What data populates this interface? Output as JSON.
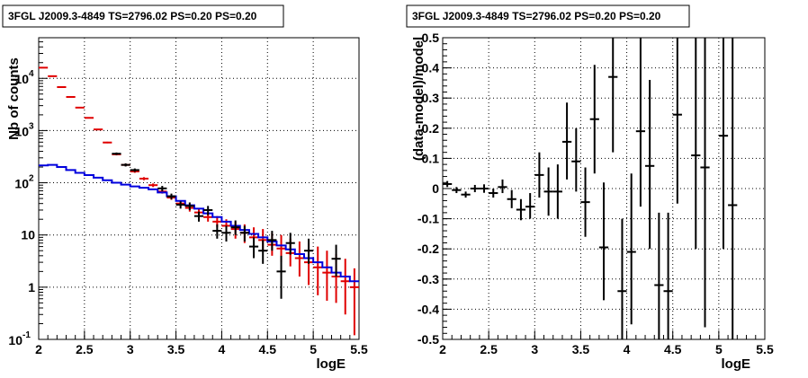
{
  "chart_data": [
    {
      "type": "scatter",
      "title": "3FGL J2009.3-4849 TS=2796.02 PS=0.20 PS=0.20",
      "xlabel": "logE",
      "ylabel": "Nb of counts",
      "xlim": [
        2,
        5.5
      ],
      "ylim": [
        0.1,
        60000
      ],
      "yscale": "log",
      "grid": true,
      "xticks": [
        "2",
        "2.5",
        "3",
        "3.5",
        "4",
        "4.5",
        "5",
        "5.5"
      ],
      "yticks": [
        {
          "value": 0.1,
          "base": "10",
          "exp": "-1"
        },
        {
          "value": 1,
          "label": "1"
        },
        {
          "value": 10,
          "label": "10"
        },
        {
          "value": 100,
          "base": "10",
          "exp": "2"
        },
        {
          "value": 1000,
          "base": "10",
          "exp": "3"
        },
        {
          "value": 10000,
          "base": "10",
          "exp": "4"
        }
      ],
      "series": [
        {
          "style": "red-errorbar",
          "color": "#e00000",
          "halfwidth": 0.05,
          "points": [
            {
              "x": 2.05,
              "y": 16000,
              "lo": 15800,
              "hi": 16200
            },
            {
              "x": 2.15,
              "y": 11000,
              "lo": 10850,
              "hi": 11150
            },
            {
              "x": 2.25,
              "y": 6800,
              "lo": 6700,
              "hi": 6900
            },
            {
              "x": 2.35,
              "y": 4400,
              "lo": 4330,
              "hi": 4470
            },
            {
              "x": 2.45,
              "y": 2750,
              "lo": 2700,
              "hi": 2800
            },
            {
              "x": 2.55,
              "y": 1750,
              "lo": 1710,
              "hi": 1790
            },
            {
              "x": 2.65,
              "y": 1050,
              "lo": 1020,
              "hi": 1080
            },
            {
              "x": 2.75,
              "y": 590,
              "lo": 570,
              "hi": 610
            },
            {
              "x": 2.85,
              "y": 350,
              "lo": 335,
              "hi": 365
            },
            {
              "x": 2.95,
              "y": 220,
              "lo": 208,
              "hi": 232
            },
            {
              "x": 3.05,
              "y": 165,
              "lo": 155,
              "hi": 175
            },
            {
              "x": 3.15,
              "y": 120,
              "lo": 112,
              "hi": 128
            },
            {
              "x": 3.25,
              "y": 90,
              "lo": 83,
              "hi": 97
            },
            {
              "x": 3.35,
              "y": 68,
              "lo": 62,
              "hi": 74
            },
            {
              "x": 3.45,
              "y": 52,
              "lo": 47,
              "hi": 57
            },
            {
              "x": 3.55,
              "y": 40,
              "lo": 35,
              "hi": 45
            },
            {
              "x": 3.65,
              "y": 33,
              "lo": 28,
              "hi": 38
            },
            {
              "x": 3.75,
              "y": 27,
              "lo": 22,
              "hi": 32
            },
            {
              "x": 3.85,
              "y": 22,
              "lo": 18,
              "hi": 27
            },
            {
              "x": 3.95,
              "y": 18,
              "lo": 14,
              "hi": 23
            },
            {
              "x": 4.05,
              "y": 15,
              "lo": 10,
              "hi": 20
            },
            {
              "x": 4.15,
              "y": 13,
              "lo": 8.5,
              "hi": 18
            },
            {
              "x": 4.25,
              "y": 11,
              "lo": 7,
              "hi": 16
            },
            {
              "x": 4.35,
              "y": 9,
              "lo": 6,
              "hi": 14
            },
            {
              "x": 4.45,
              "y": 8,
              "lo": 5,
              "hi": 13
            },
            {
              "x": 4.55,
              "y": 6.5,
              "lo": 4,
              "hi": 11
            },
            {
              "x": 4.65,
              "y": 5.5,
              "lo": 3,
              "hi": 10
            },
            {
              "x": 4.75,
              "y": 4.5,
              "lo": 2.5,
              "hi": 8.5
            },
            {
              "x": 4.85,
              "y": 3.6,
              "lo": 1.6,
              "hi": 7.5
            },
            {
              "x": 4.95,
              "y": 3,
              "lo": 1.1,
              "hi": 7
            },
            {
              "x": 5.05,
              "y": 2.4,
              "lo": 0.7,
              "hi": 6
            },
            {
              "x": 5.15,
              "y": 1.9,
              "lo": 0.55,
              "hi": 5
            },
            {
              "x": 5.25,
              "y": 1.6,
              "lo": 0.5,
              "hi": 4.3
            },
            {
              "x": 5.35,
              "y": 1.3,
              "lo": 0.3,
              "hi": 3.5
            },
            {
              "x": 5.45,
              "y": 1.0,
              "lo": 0.12,
              "hi": 2.3
            }
          ]
        },
        {
          "style": "blue-step",
          "color": "#0000dd",
          "edges": [
            2.0,
            2.1,
            2.2,
            2.3,
            2.4,
            2.5,
            2.6,
            2.7,
            2.8,
            2.9,
            3.0,
            3.1,
            3.2,
            3.3,
            3.4,
            3.5,
            3.6,
            3.7,
            3.8,
            3.9,
            4.0,
            4.1,
            4.2,
            4.3,
            4.4,
            4.5,
            4.6,
            4.7,
            4.8,
            4.9,
            5.0,
            5.1,
            5.2,
            5.3,
            5.4,
            5.5
          ],
          "values": [
            215,
            220,
            200,
            175,
            155,
            140,
            125,
            112,
            100,
            92,
            85,
            80,
            75,
            65,
            55,
            45,
            37,
            32,
            26,
            22,
            18,
            15,
            12.5,
            10.5,
            9,
            7.5,
            6.3,
            5.3,
            4.3,
            3.6,
            3.0,
            2.4,
            1.9,
            1.6,
            1.3
          ]
        },
        {
          "style": "black-errorbar",
          "color": "#000000",
          "halfwidth": 0.05,
          "points": [
            {
              "x": 2.85,
              "y": 360,
              "lo": 340,
              "hi": 380
            },
            {
              "x": 2.95,
              "y": 220,
              "lo": 205,
              "hi": 235
            },
            {
              "x": 3.05,
              "y": 175,
              "lo": 162,
              "hi": 188
            },
            {
              "x": 3.35,
              "y": 78,
              "lo": 69,
              "hi": 87
            },
            {
              "x": 3.45,
              "y": 55,
              "lo": 48,
              "hi": 62
            },
            {
              "x": 3.55,
              "y": 38,
              "lo": 32,
              "hi": 44
            },
            {
              "x": 3.65,
              "y": 36,
              "lo": 30,
              "hi": 42
            },
            {
              "x": 3.75,
              "y": 23,
              "lo": 18,
              "hi": 28
            },
            {
              "x": 3.85,
              "y": 30,
              "lo": 24,
              "hi": 36
            },
            {
              "x": 3.95,
              "y": 12,
              "lo": 8.5,
              "hi": 16
            },
            {
              "x": 4.05,
              "y": 11,
              "lo": 7.5,
              "hi": 15
            },
            {
              "x": 4.15,
              "y": 14,
              "lo": 10,
              "hi": 19
            },
            {
              "x": 4.25,
              "y": 11,
              "lo": 7.5,
              "hi": 15
            },
            {
              "x": 4.35,
              "y": 6,
              "lo": 3.6,
              "hi": 9
            },
            {
              "x": 4.45,
              "y": 5,
              "lo": 2.8,
              "hi": 8
            },
            {
              "x": 4.55,
              "y": 8,
              "lo": 5,
              "hi": 12
            },
            {
              "x": 4.65,
              "y": 2,
              "lo": 0.6,
              "hi": 4
            },
            {
              "x": 4.75,
              "y": 7,
              "lo": 4.2,
              "hi": 11
            },
            {
              "x": 4.95,
              "y": 5,
              "lo": 2.8,
              "hi": 8.5
            },
            {
              "x": 5.25,
              "y": 3.5,
              "lo": 1.6,
              "hi": 6.5
            }
          ]
        }
      ]
    },
    {
      "type": "scatter",
      "title": "3FGL J2009.3-4849 TS=2796.02 PS=0.20 PS=0.20",
      "xlabel": "logE",
      "ylabel": "(data-model)/model",
      "xlim": [
        2,
        5.5
      ],
      "ylim": [
        -0.5,
        0.5
      ],
      "grid": true,
      "xticks": [
        "2",
        "2.5",
        "3",
        "3.5",
        "4",
        "4.5",
        "5",
        "5.5"
      ],
      "yticks": [
        "-0.5",
        "-0.4",
        "-0.3",
        "-0.2",
        "-0.1",
        "0",
        "0.1",
        "0.2",
        "0.3",
        "0.4",
        "0.5"
      ],
      "series": [
        {
          "style": "black-errorbar",
          "color": "#000000",
          "halfwidth": 0.05,
          "points": [
            {
              "x": 2.05,
              "y": 0.015,
              "lo": 0.005,
              "hi": 0.025
            },
            {
              "x": 2.15,
              "y": -0.005,
              "lo": -0.015,
              "hi": 0.005
            },
            {
              "x": 2.25,
              "y": -0.02,
              "lo": -0.03,
              "hi": -0.01
            },
            {
              "x": 2.35,
              "y": 0.0,
              "lo": -0.012,
              "hi": 0.012
            },
            {
              "x": 2.45,
              "y": 0.0,
              "lo": -0.014,
              "hi": 0.014
            },
            {
              "x": 2.55,
              "y": -0.015,
              "lo": -0.03,
              "hi": 0.0
            },
            {
              "x": 2.65,
              "y": 0.005,
              "lo": -0.015,
              "hi": 0.03
            },
            {
              "x": 2.75,
              "y": -0.035,
              "lo": -0.065,
              "hi": -0.005
            },
            {
              "x": 2.85,
              "y": -0.07,
              "lo": -0.105,
              "hi": -0.035
            },
            {
              "x": 2.95,
              "y": -0.06,
              "lo": -0.1,
              "hi": -0.015
            },
            {
              "x": 3.05,
              "y": 0.045,
              "lo": -0.03,
              "hi": 0.12
            },
            {
              "x": 3.15,
              "y": -0.01,
              "lo": -0.09,
              "hi": 0.07
            },
            {
              "x": 3.25,
              "y": -0.01,
              "lo": -0.1,
              "hi": 0.08
            },
            {
              "x": 3.35,
              "y": 0.155,
              "lo": 0.03,
              "hi": 0.285
            },
            {
              "x": 3.45,
              "y": 0.09,
              "lo": -0.01,
              "hi": 0.2
            },
            {
              "x": 3.55,
              "y": -0.045,
              "lo": -0.16,
              "hi": 0.07
            },
            {
              "x": 3.65,
              "y": 0.23,
              "lo": 0.05,
              "hi": 0.41
            },
            {
              "x": 3.75,
              "y": -0.195,
              "lo": -0.37,
              "hi": 0.02
            },
            {
              "x": 3.85,
              "y": 0.37,
              "lo": 0.12,
              "hi": 0.5
            },
            {
              "x": 3.95,
              "y": -0.34,
              "lo": -0.5,
              "hi": -0.1
            },
            {
              "x": 4.05,
              "y": -0.21,
              "lo": -0.45,
              "hi": 0.05
            },
            {
              "x": 4.15,
              "y": 0.19,
              "lo": -0.06,
              "hi": 0.5
            },
            {
              "x": 4.25,
              "y": 0.075,
              "lo": -0.2,
              "hi": 0.36
            },
            {
              "x": 4.35,
              "y": -0.32,
              "lo": -0.5,
              "hi": -0.08
            },
            {
              "x": 4.45,
              "y": -0.34,
              "lo": -0.5,
              "hi": -0.08
            },
            {
              "x": 4.55,
              "y": 0.245,
              "lo": -0.05,
              "hi": 0.5
            },
            {
              "x": 4.75,
              "y": 0.11,
              "lo": -0.2,
              "hi": 0.5
            },
            {
              "x": 4.85,
              "y": 0.07,
              "lo": -0.46,
              "hi": 0.5
            },
            {
              "x": 5.05,
              "y": 0.175,
              "lo": -0.2,
              "hi": 0.5
            },
            {
              "x": 5.15,
              "y": -0.055,
              "lo": -0.5,
              "hi": 0.5
            }
          ]
        }
      ]
    }
  ]
}
